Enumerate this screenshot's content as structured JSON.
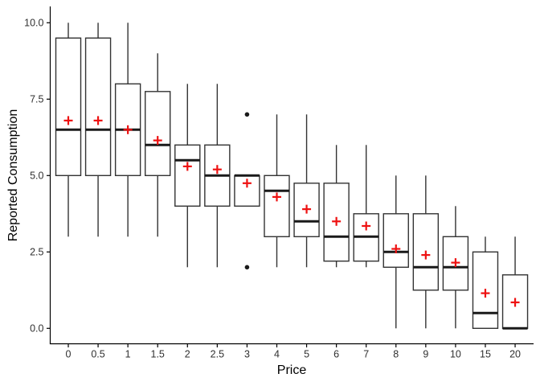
{
  "chart_data": {
    "type": "box",
    "title": "",
    "xlabel": "Price",
    "ylabel": "Reported Consumption",
    "categories": [
      "0",
      "0.5",
      "1",
      "1.5",
      "2",
      "2.5",
      "3",
      "4",
      "5",
      "6",
      "7",
      "8",
      "9",
      "10",
      "15",
      "20"
    ],
    "y_ticks": [
      {
        "label": "0.0",
        "value": 0
      },
      {
        "label": "2.5",
        "value": 2.5
      },
      {
        "label": "5.0",
        "value": 5
      },
      {
        "label": "7.5",
        "value": 7.5
      },
      {
        "label": "10.0",
        "value": 10
      }
    ],
    "ylim": [
      0,
      10
    ],
    "grid": false,
    "legend_position": "none",
    "mean_marker": "red-plus",
    "colors": {
      "box_stroke": "#333333",
      "box_fill": "#ffffff",
      "median": "#1a1a1a",
      "mean": "#ee1111",
      "outlier": "#1a1a1a",
      "axis": "#000000",
      "tick_label": "#303030"
    },
    "boxes": [
      {
        "category": "0",
        "low": 3,
        "q1": 5,
        "median": 6.5,
        "q3": 9.5,
        "high": 10,
        "mean": 6.8,
        "outliers": []
      },
      {
        "category": "0.5",
        "low": 3,
        "q1": 5,
        "median": 6.5,
        "q3": 9.5,
        "high": 10,
        "mean": 6.8,
        "outliers": []
      },
      {
        "category": "1",
        "low": 3,
        "q1": 5,
        "median": 6.5,
        "q3": 8,
        "high": 10,
        "mean": 6.5,
        "outliers": []
      },
      {
        "category": "1.5",
        "low": 3,
        "q1": 5,
        "median": 6,
        "q3": 7.75,
        "high": 9,
        "mean": 6.15,
        "outliers": []
      },
      {
        "category": "2",
        "low": 2,
        "q1": 4,
        "median": 5.5,
        "q3": 6,
        "high": 8,
        "mean": 5.3,
        "outliers": []
      },
      {
        "category": "2.5",
        "low": 2,
        "q1": 4,
        "median": 5,
        "q3": 6,
        "high": 8,
        "mean": 5.2,
        "outliers": []
      },
      {
        "category": "3",
        "low": 4,
        "q1": 4,
        "median": 5,
        "q3": 5,
        "high": 5,
        "mean": 4.75,
        "outliers": [
          7,
          2
        ]
      },
      {
        "category": "4",
        "low": 2,
        "q1": 3,
        "median": 4.5,
        "q3": 5,
        "high": 7,
        "mean": 4.3,
        "outliers": []
      },
      {
        "category": "5",
        "low": 2,
        "q1": 3,
        "median": 3.5,
        "q3": 4.75,
        "high": 7,
        "mean": 3.9,
        "outliers": []
      },
      {
        "category": "6",
        "low": 2,
        "q1": 2.2,
        "median": 3,
        "q3": 4.75,
        "high": 6,
        "mean": 3.5,
        "outliers": []
      },
      {
        "category": "7",
        "low": 2,
        "q1": 2.2,
        "median": 3,
        "q3": 3.75,
        "high": 6,
        "mean": 3.35,
        "outliers": []
      },
      {
        "category": "8",
        "low": 0,
        "q1": 2,
        "median": 2.5,
        "q3": 3.75,
        "high": 5,
        "mean": 2.6,
        "outliers": []
      },
      {
        "category": "9",
        "low": 0,
        "q1": 1.25,
        "median": 2,
        "q3": 3.75,
        "high": 5,
        "mean": 2.4,
        "outliers": []
      },
      {
        "category": "10",
        "low": 0,
        "q1": 1.25,
        "median": 2,
        "q3": 3,
        "high": 4,
        "mean": 2.15,
        "outliers": []
      },
      {
        "category": "15",
        "low": 0,
        "q1": 0,
        "median": 0.5,
        "q3": 2.5,
        "high": 3,
        "mean": 1.15,
        "outliers": []
      },
      {
        "category": "20",
        "low": 0,
        "q1": 0,
        "median": 0,
        "q3": 1.75,
        "high": 3,
        "mean": 0.85,
        "outliers": []
      }
    ]
  }
}
